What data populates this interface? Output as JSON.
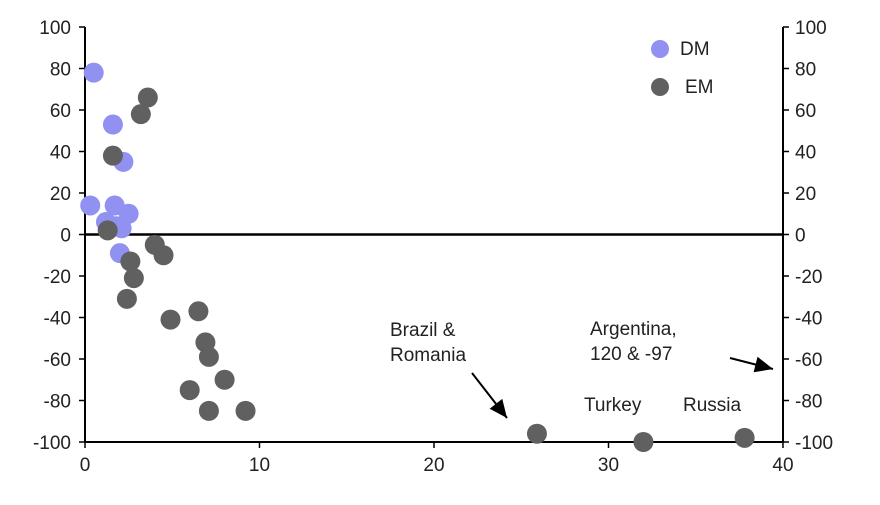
{
  "colors": {
    "dm": "#9191f2",
    "em": "#606060",
    "axis": "#000000",
    "text": "#222222"
  },
  "chart_data": {
    "type": "scatter",
    "title": "",
    "xlabel": "",
    "ylabel": "",
    "xlim": [
      0,
      40
    ],
    "ylim": [
      -100,
      100
    ],
    "x_ticks": [
      "0",
      "10",
      "20",
      "30",
      "40"
    ],
    "y_ticks": [
      "100",
      "80",
      "60",
      "40",
      "20",
      "0",
      "-20",
      "-40",
      "-60",
      "-80",
      "-100"
    ],
    "y_ticks_right": [
      "100",
      "80",
      "60",
      "40",
      "20",
      "0",
      "-20",
      "-40",
      "-60",
      "-80",
      "-100"
    ],
    "grid": false,
    "legend_position": "top-right",
    "series": [
      {
        "name": "DM",
        "color": "#9191f2",
        "points": [
          [
            0.5,
            78
          ],
          [
            1.6,
            53
          ],
          [
            2.2,
            35
          ],
          [
            0.3,
            14
          ],
          [
            1.7,
            14
          ],
          [
            2.5,
            10
          ],
          [
            1.2,
            6
          ],
          [
            1.8,
            4
          ],
          [
            2.1,
            3
          ],
          [
            2.0,
            -9
          ]
        ]
      },
      {
        "name": "EM",
        "color": "#606060",
        "points": [
          [
            3.6,
            66
          ],
          [
            3.2,
            58
          ],
          [
            1.6,
            38
          ],
          [
            1.3,
            2
          ],
          [
            4.0,
            -5
          ],
          [
            4.5,
            -10
          ],
          [
            2.6,
            -13
          ],
          [
            2.8,
            -21
          ],
          [
            2.4,
            -31
          ],
          [
            4.9,
            -41
          ],
          [
            6.5,
            -37
          ],
          [
            6.9,
            -52
          ],
          [
            7.1,
            -59
          ],
          [
            8.0,
            -70
          ],
          [
            6.0,
            -75
          ],
          [
            7.1,
            -85
          ],
          [
            9.2,
            -85
          ],
          [
            25.9,
            -96
          ],
          [
            32.0,
            -100
          ],
          [
            37.8,
            -98
          ]
        ]
      }
    ],
    "annotations": [
      {
        "text": [
          "Brazil &",
          "Romania"
        ]
      },
      {
        "text": [
          "Argentina,",
          "120 & -97"
        ]
      },
      {
        "text": [
          "Turkey"
        ]
      },
      {
        "text": [
          "Russia"
        ]
      }
    ]
  }
}
